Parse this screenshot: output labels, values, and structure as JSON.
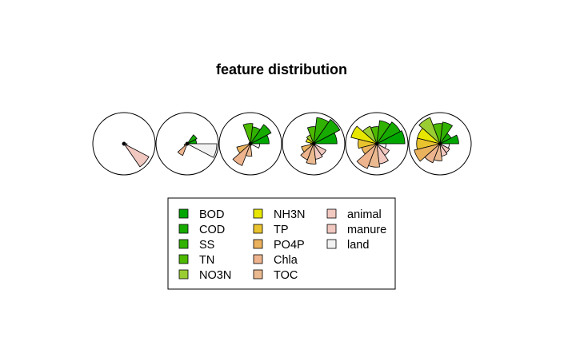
{
  "chart_data": {
    "type": "star",
    "title": "feature distribution",
    "features": [
      "BOD",
      "COD",
      "SS",
      "TN",
      "NO3N",
      "NH3N",
      "TP",
      "PO4P",
      "Chla",
      "TOC",
      "animal",
      "manure",
      "land"
    ],
    "colors": [
      "#00A600",
      "#17AB00",
      "#31B200",
      "#4DBA00",
      "#9ACD32",
      "#E6E600",
      "#E8C32E",
      "#EBB25E",
      "#EDB48E",
      "#EBB98F",
      "#F2C9C0",
      "#F0C8C0",
      "#F2F2F2"
    ],
    "stars": [
      {
        "values": [
          0.05,
          0.05,
          0.05,
          0.05,
          0.05,
          0.05,
          0.05,
          0.05,
          0.05,
          0.05,
          0.05,
          0.9,
          0.1
        ]
      },
      {
        "values": [
          0.3,
          0.35,
          0.05,
          0.05,
          0.05,
          0.05,
          0.05,
          0.1,
          0.4,
          0.05,
          0.05,
          0.05,
          0.95
        ]
      },
      {
        "values": [
          0.6,
          0.75,
          0.55,
          0.65,
          0.05,
          0.05,
          0.05,
          0.45,
          0.75,
          0.4,
          0.05,
          0.05,
          0.3
        ]
      },
      {
        "values": [
          0.75,
          0.95,
          0.85,
          0.55,
          0.3,
          0.25,
          0.1,
          0.4,
          0.55,
          0.65,
          0.5,
          0.45,
          0.05
        ]
      },
      {
        "values": [
          0.9,
          0.85,
          0.75,
          0.55,
          0.6,
          0.85,
          0.6,
          0.5,
          0.85,
          0.75,
          0.65,
          0.45,
          0.3
        ]
      },
      {
        "values": [
          0.6,
          0.4,
          0.7,
          0.65,
          0.9,
          0.75,
          0.75,
          0.85,
          0.65,
          0.55,
          0.4,
          0.35,
          0.3
        ]
      }
    ],
    "legend": {
      "position": "bottom-center",
      "columns": [
        [
          "BOD",
          "COD",
          "SS",
          "TN",
          "NO3N"
        ],
        [
          "NH3N",
          "TP",
          "PO4P",
          "Chla",
          "TOC"
        ],
        [
          "animal",
          "manure",
          "land"
        ]
      ]
    }
  }
}
